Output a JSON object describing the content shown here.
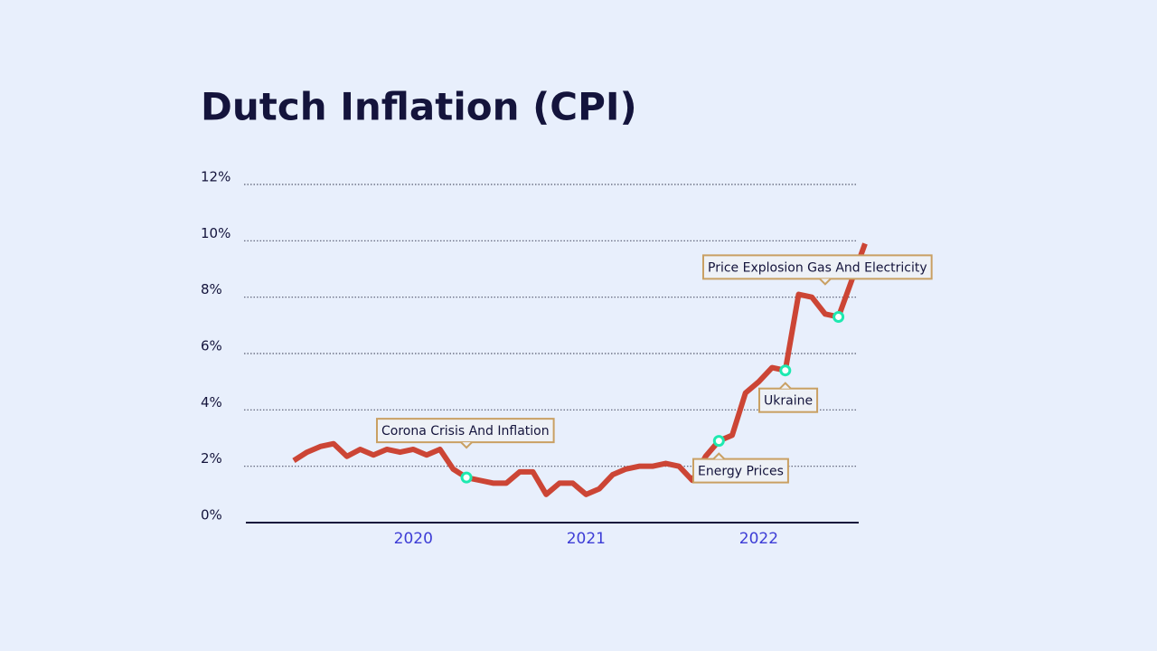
{
  "chart_data": {
    "type": "line",
    "title": "Dutch Inflation (CPI)",
    "categories": [
      null,
      null,
      null,
      null,
      null,
      null,
      null,
      null,
      null,
      "2020",
      null,
      null,
      null,
      null,
      null,
      null,
      null,
      null,
      null,
      null,
      null,
      null,
      "2021",
      null,
      null,
      null,
      null,
      null,
      null,
      null,
      null,
      null,
      null,
      null,
      null,
      "2022",
      null,
      null,
      null,
      null,
      null,
      null,
      null,
      null
    ],
    "series": [
      {
        "name": "CPI",
        "color": "#cc4535",
        "values": [
          2.2,
          2.5,
          2.7,
          2.8,
          2.35,
          2.6,
          2.4,
          2.6,
          2.5,
          2.6,
          2.4,
          2.6,
          1.9,
          1.6,
          1.5,
          1.4,
          1.4,
          1.8,
          1.8,
          1.0,
          1.4,
          1.4,
          1.0,
          1.2,
          1.7,
          1.9,
          2.0,
          2.0,
          2.1,
          2.0,
          1.5,
          2.35,
          2.9,
          3.1,
          4.6,
          5.0,
          5.5,
          5.4,
          8.1,
          8.0,
          7.4,
          7.3,
          8.6,
          9.9
        ]
      }
    ],
    "ylim": [
      0,
      12
    ],
    "yticks": [
      {
        "value": 0,
        "label": "0%"
      },
      {
        "value": 2,
        "label": "2%"
      },
      {
        "value": 4,
        "label": "4%"
      },
      {
        "value": 6,
        "label": "6%"
      },
      {
        "value": 8,
        "label": "8%"
      },
      {
        "value": 10,
        "label": "10%"
      },
      {
        "value": 12,
        "label": "12%"
      }
    ],
    "grid": true,
    "annotations": [
      "Corona Crisis And Inflation",
      "Energy Prices",
      "Ukraine",
      "Price Explosion Gas And Electricity"
    ]
  }
}
